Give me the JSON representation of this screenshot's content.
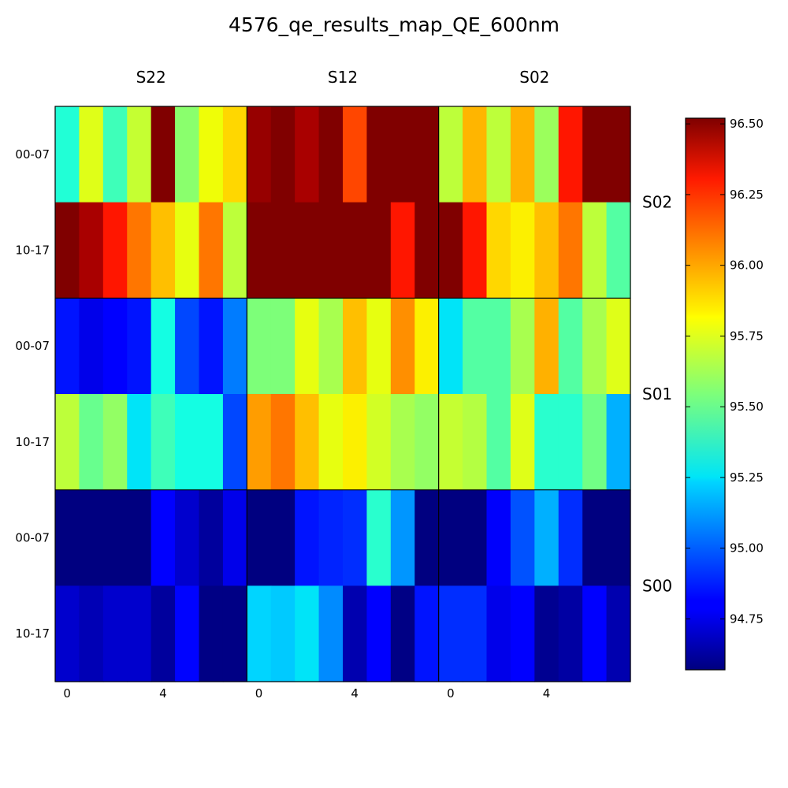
{
  "chart_data": {
    "type": "heatmap",
    "title": "4576_qe_results_map_QE_600nm",
    "column_groups": [
      "S22",
      "S12",
      "S02"
    ],
    "row_groups": [
      "S02",
      "S01",
      "S00"
    ],
    "row_labels": [
      "00-07",
      "10-17",
      "00-07",
      "10-17",
      "00-07",
      "10-17"
    ],
    "x_tick_labels": [
      "0",
      "4"
    ],
    "x_ticks": [
      0,
      4
    ],
    "columns_per_group": 8,
    "colormap": "jet",
    "colorbar": {
      "min": 94.57,
      "max": 96.52,
      "ticks": [
        94.75,
        95.0,
        95.25,
        95.5,
        95.75,
        96.0,
        96.25,
        96.5
      ],
      "tick_labels": [
        "94.75",
        "95.00",
        "95.25",
        "95.50",
        "95.75",
        "96.00",
        "96.25",
        "96.50"
      ]
    },
    "values": [
      [
        95.33,
        95.78,
        95.4,
        95.72,
        96.52,
        95.58,
        95.82,
        95.9,
        96.48,
        96.52,
        96.45,
        96.52,
        96.2,
        96.52,
        96.52,
        96.52,
        95.7,
        95.97,
        95.7,
        95.98,
        95.62,
        96.3,
        96.52,
        96.52
      ],
      [
        96.52,
        96.45,
        96.3,
        96.1,
        95.95,
        95.8,
        96.1,
        95.7,
        96.52,
        96.52,
        96.52,
        96.52,
        96.52,
        96.52,
        96.3,
        96.52,
        96.52,
        96.3,
        95.9,
        95.85,
        95.95,
        96.1,
        95.7,
        95.45
      ],
      [
        94.85,
        94.75,
        94.8,
        94.85,
        95.3,
        94.95,
        94.85,
        95.05,
        95.55,
        95.55,
        95.8,
        95.65,
        95.95,
        95.8,
        96.05,
        95.85,
        95.25,
        95.45,
        95.45,
        95.65,
        95.98,
        95.45,
        95.65,
        95.78
      ],
      [
        95.7,
        95.5,
        95.6,
        95.25,
        95.4,
        95.3,
        95.3,
        94.95,
        96.02,
        96.1,
        95.95,
        95.8,
        95.85,
        95.75,
        95.65,
        95.6,
        95.72,
        95.68,
        95.45,
        95.78,
        95.35,
        95.35,
        95.52,
        95.15
      ],
      [
        94.57,
        94.57,
        94.57,
        94.57,
        94.8,
        94.7,
        94.62,
        94.75,
        94.57,
        94.57,
        94.85,
        94.88,
        94.9,
        95.35,
        95.1,
        94.57,
        94.57,
        94.57,
        94.78,
        94.97,
        95.15,
        94.9,
        94.57,
        94.57
      ],
      [
        94.7,
        94.66,
        94.7,
        94.7,
        94.62,
        94.82,
        94.58,
        94.58,
        95.22,
        95.2,
        95.25,
        95.08,
        94.65,
        94.8,
        94.58,
        94.85,
        94.9,
        94.9,
        94.75,
        94.8,
        94.6,
        94.63,
        94.8,
        94.65
      ]
    ]
  }
}
